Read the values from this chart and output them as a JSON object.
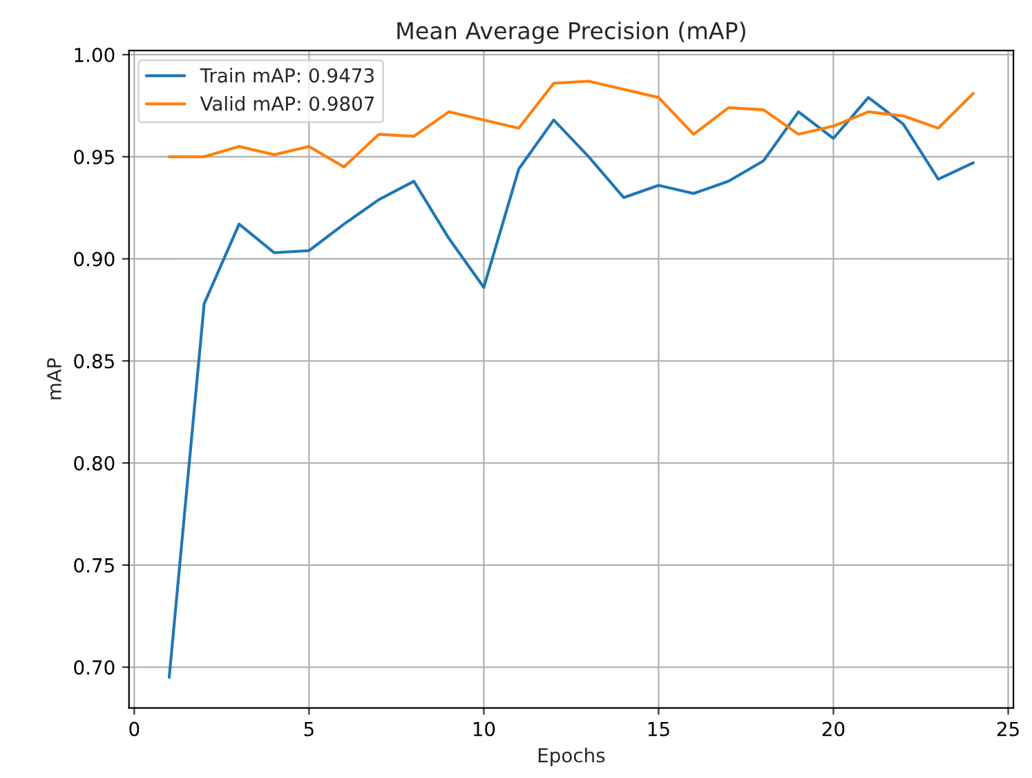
{
  "chart_data": {
    "type": "line",
    "title": "Mean Average Precision (mAP)",
    "xlabel": "Epochs",
    "ylabel": "mAP",
    "x": [
      1,
      2,
      3,
      4,
      5,
      6,
      7,
      8,
      9,
      10,
      11,
      12,
      13,
      14,
      15,
      16,
      17,
      18,
      19,
      20,
      21,
      22,
      23,
      24
    ],
    "series": [
      {
        "name": "Train mAP: 0.9473",
        "color": "#1f77b4",
        "values": [
          0.695,
          0.878,
          0.917,
          0.903,
          0.904,
          0.917,
          0.929,
          0.938,
          0.91,
          0.886,
          0.944,
          0.968,
          0.95,
          0.93,
          0.936,
          0.932,
          0.938,
          0.948,
          0.972,
          0.959,
          0.979,
          0.966,
          0.939,
          0.947
        ]
      },
      {
        "name": "Valid mAP: 0.9807",
        "color": "#ff7f0e",
        "values": [
          0.95,
          0.95,
          0.955,
          0.951,
          0.955,
          0.945,
          0.961,
          0.96,
          0.972,
          0.968,
          0.964,
          0.986,
          0.987,
          0.983,
          0.979,
          0.961,
          0.974,
          0.973,
          0.961,
          0.965,
          0.972,
          0.97,
          0.964,
          0.981
        ]
      }
    ],
    "xlim": [
      -0.15,
      25.15
    ],
    "ylim": [
      0.68,
      1.002
    ],
    "xticks": [
      0,
      5,
      10,
      15,
      20,
      25
    ],
    "yticks": [
      {
        "value": 0.7,
        "label": "0.70"
      },
      {
        "value": 0.75,
        "label": "0.75"
      },
      {
        "value": 0.8,
        "label": "0.80"
      },
      {
        "value": 0.85,
        "label": "0.85"
      },
      {
        "value": 0.9,
        "label": "0.90"
      },
      {
        "value": 0.95,
        "label": "0.95"
      },
      {
        "value": 1.0,
        "label": "1.00"
      }
    ],
    "grid": true,
    "legend": "top left",
    "marker": "none",
    "line_style": "solid"
  }
}
